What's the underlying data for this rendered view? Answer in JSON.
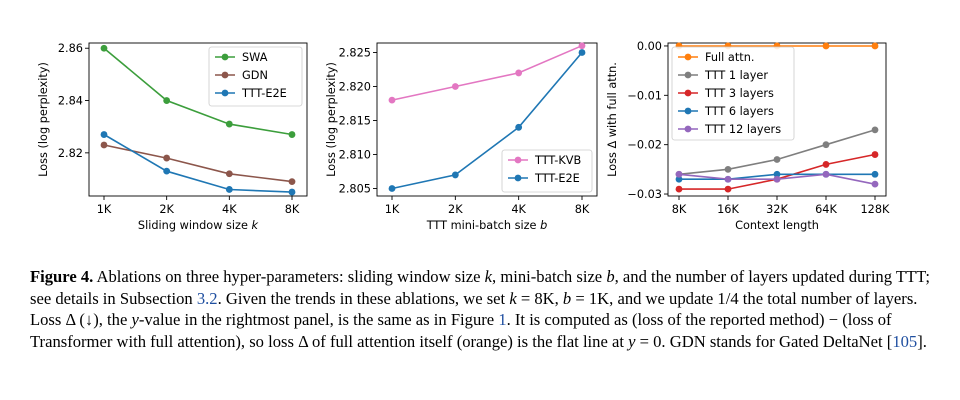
{
  "chart_data": [
    {
      "type": "line",
      "xlabel_pre": "Sliding window size ",
      "xlabel_var": "k",
      "ylabel": "Loss (log perplexity)",
      "categories": [
        "1K",
        "2K",
        "4K",
        "8K"
      ],
      "ylim": [
        2.8035,
        2.862
      ],
      "yticks": [
        2.82,
        2.84,
        2.86
      ],
      "yticklabels": [
        "2.82",
        "2.84",
        "2.86"
      ],
      "legend_position": "top-right",
      "series": [
        {
          "name": "SWA",
          "color": "#3c9e3c",
          "values": [
            2.86,
            2.84,
            2.831,
            2.827
          ]
        },
        {
          "name": "GDN",
          "color": "#8c564b",
          "values": [
            2.823,
            2.818,
            2.812,
            2.809
          ]
        },
        {
          "name": "TTT-E2E",
          "color": "#1f77b4",
          "values": [
            2.827,
            2.813,
            2.806,
            2.805
          ]
        }
      ]
    },
    {
      "type": "line",
      "xlabel_pre": "TTT mini-batch size ",
      "xlabel_var": "b",
      "ylabel": "Loss (log perplexity)",
      "categories": [
        "1K",
        "2K",
        "4K",
        "8K"
      ],
      "ylim": [
        2.8039,
        2.8264
      ],
      "yticks": [
        2.805,
        2.81,
        2.815,
        2.82,
        2.825
      ],
      "yticklabels": [
        "2.805",
        "2.810",
        "2.815",
        "2.820",
        "2.825"
      ],
      "legend_position": "bottom-right",
      "series": [
        {
          "name": "TTT-KVB",
          "color": "#e377c2",
          "values": [
            2.818,
            2.82,
            2.822,
            2.826
          ]
        },
        {
          "name": "TTT-E2E",
          "color": "#1f77b4",
          "values": [
            2.805,
            2.807,
            2.814,
            2.825
          ]
        }
      ]
    },
    {
      "type": "line",
      "xlabel": "Context length",
      "ylabel": "Loss Δ with full attn.",
      "categories": [
        "8K",
        "16K",
        "32K",
        "64K",
        "128K"
      ],
      "ylim": [
        -0.0304,
        0.0006
      ],
      "yticks": [
        -0.03,
        -0.02,
        -0.01,
        0.0
      ],
      "yticklabels": [
        "−0.03",
        "−0.02",
        "−0.01",
        "0.00"
      ],
      "legend_position": "top-left",
      "series": [
        {
          "name": "Full attn.",
          "color": "#ff7f0e",
          "values": [
            0,
            0,
            0,
            0,
            0
          ]
        },
        {
          "name": "TTT 1 layer",
          "color": "#7f7f7f",
          "values": [
            -0.026,
            -0.025,
            -0.023,
            -0.02,
            -0.017
          ]
        },
        {
          "name": "TTT 3 layers",
          "color": "#d62728",
          "values": [
            -0.029,
            -0.029,
            -0.027,
            -0.024,
            -0.022
          ]
        },
        {
          "name": "TTT 6 layers",
          "color": "#1f77b4",
          "values": [
            -0.027,
            -0.027,
            -0.026,
            -0.026,
            -0.026
          ]
        },
        {
          "name": "TTT 12 layers",
          "color": "#9467bd",
          "values": [
            -0.026,
            -0.027,
            -0.027,
            -0.026,
            -0.028
          ]
        }
      ]
    }
  ],
  "caption": {
    "label": "Figure 4.",
    "t1": " Ablations on three hyper-parameters: sliding window size ",
    "v1": "k",
    "t2": ", mini-batch size ",
    "v2": "b",
    "t3": ", and the number of layers updated during TTT; see details in Subsection ",
    "ref1": "3.2",
    "t4": ". Given the trends in these ablations, we set ",
    "v3": "k",
    "t5": " = 8K, ",
    "v4": "b",
    "t6": " = 1K, and we update 1/4 the total number of layers. Loss Δ (↓), the ",
    "v5": "y",
    "t7": "-value in the rightmost panel, is the same as in Figure ",
    "ref2": "1",
    "t8": ". It is computed as (loss of the reported method) − (loss of Transformer with full attention), so loss Δ of full attention itself (orange) is the flat line at ",
    "v6": "y",
    "t9": " = 0. GDN stands for Gated DeltaNet [",
    "ref3": "105",
    "t10": "]."
  }
}
